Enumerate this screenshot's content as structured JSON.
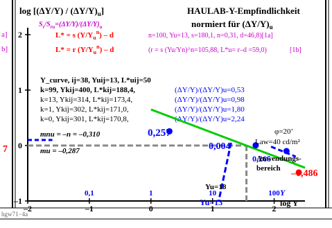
{
  "header": {
    "title_left": "log [(ΔY/Y) / (ΔY/Y)",
    "title_left_sub": "u",
    "title_left_close": "]",
    "title_right_1": "HAULAB-Y-Empfindlichkeit",
    "title_right_2": "normiert für (ΔY/Y)",
    "title_right_2_sub": "u"
  },
  "left_fragments": {
    "f1": "a]",
    "f2": "b]",
    "f3": "7"
  },
  "formulas": {
    "ratio": "S",
    "ratio_sub": "r",
    "ratio_rest": "/S",
    "ratio_sub2": "ru",
    "ratio_eq": "=(ΔY/Y)/(ΔY/Y)",
    "ratio_sub3": "u",
    "line1": "L* = s (Y/Y",
    "line1_sub": "u",
    "line1_sup": "n",
    "line1_end": ") – d",
    "line1_params": "(Y",
    "line1_params_full": "n=100, Yu=13, s=180,1, n=0,31, d=46,8)[1a]",
    "line2": "L* = r (Y/Y",
    "line2_sub": "u",
    "line2_sup": "n",
    "line2_end": ") – d",
    "line2_params_full": "(r = s (Yu/Yn)^n=105,88, L*u= r–d =59,0)",
    "line2_tag": "[1b]"
  },
  "info": {
    "line1": "Y_curve, ij=38, Yuij=13, L*uij=50",
    "line2": "k=99, Ykij=400, L*kij=188,4,",
    "line2_c": "(ΔY/Y)/(ΔY/Y)u=0,53",
    "line3": "k=13, Ykij=314, L*kij=173,4,",
    "line3_c": "(ΔY/Y)/(ΔY/Y)u=0,98",
    "line4": "k=1, Ykij=302, L*kij=171,0,",
    "line4_c": "(ΔY/Y)/(ΔY/Y)u=1,80",
    "line5": "k=0, Ykij=301, L*kij=170,8,",
    "line5_c": "(ΔY/Y)/(ΔY/Y)u=2,24"
  },
  "annotations": {
    "mnu": "mnu = –n = –0,310",
    "mu": "mu = –0,287",
    "val_257": "0,257",
    "val_004": "0,004",
    "val_486": "–0,486",
    "val_265": "0,265",
    "phi": "φ=20’",
    "law": "Law=40 cd/m²",
    "anwendung_1": "Anwendungs-",
    "anwendung_2": "bereich",
    "yu_18": "Yu=18",
    "yu_13": "Yu=13",
    "ylabel_y": "Y",
    "xlabel": "log Y"
  },
  "footer": {
    "code": "hgw71−4a"
  },
  "colors": {
    "black": "#000000",
    "blue": "#0000ff",
    "red": "#ff0000",
    "green": "#00cc00",
    "magenta": "#cc00cc",
    "grey": "#888888"
  },
  "chart_data": {
    "type": "line",
    "title": "HAULAB-Y-Empfindlichkeit normiert für (ΔY/Y)u",
    "xlabel": "log Y",
    "ylabel": "log [(ΔY/Y) / (ΔY/Y)u]",
    "xlim": [
      -2,
      2.5
    ],
    "ylim": [
      -1,
      2
    ],
    "xticks": [
      -2,
      -1,
      0,
      1,
      2
    ],
    "yticks": [
      -1,
      0,
      1,
      2
    ],
    "top_axis_labels": [
      {
        "x": -1,
        "label": "0,1"
      },
      {
        "x": 0,
        "label": "1"
      },
      {
        "x": 1,
        "label": "10"
      },
      {
        "x": 2,
        "label": "100"
      }
    ],
    "series": [
      {
        "color": "#00cc00",
        "x": [
          0.0,
          2.5
        ],
        "y": [
          0.65,
          -0.4
        ]
      }
    ],
    "points": [
      {
        "x": 0.3,
        "y": 0.257,
        "color": "#0000ff"
      },
      {
        "x": 1.7,
        "y": 0.004,
        "color": "#0000ff"
      },
      {
        "x": 2.2,
        "y": -0.1,
        "color": "#0000ff"
      },
      {
        "x": 2.4,
        "y": -0.486,
        "color": "#ff0000"
      }
    ]
  }
}
